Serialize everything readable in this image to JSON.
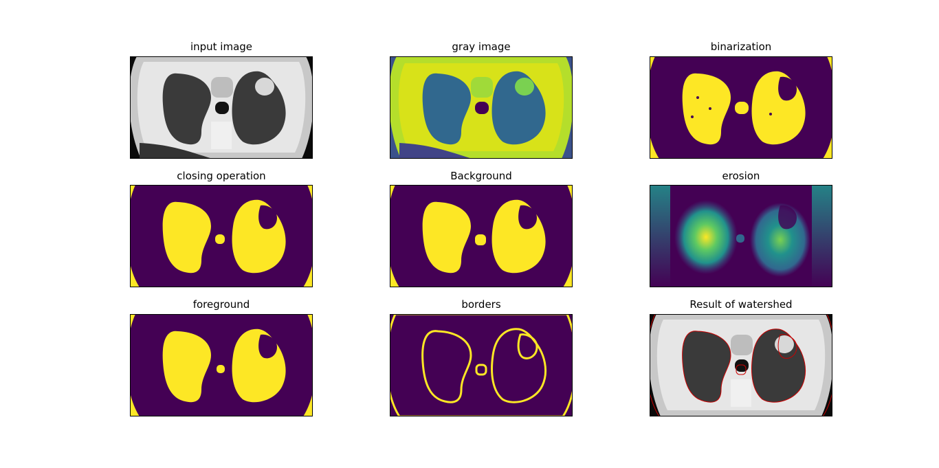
{
  "figure": {
    "titles": {
      "input": "input image",
      "gray": "gray image",
      "binarization": "binarization",
      "closing": "closing operation",
      "background": "Background",
      "erosion": "erosion",
      "foreground": "foreground",
      "borders": "borders",
      "watershed": "Result of watershed"
    }
  },
  "colors": {
    "viridis_dark": "#440154",
    "viridis_yellow": "#fde725",
    "viridis_green": "#b5de2b",
    "viridis_mid": "#21918c",
    "viridis_blue": "#3b528b",
    "watershed_border": "#cc0000"
  },
  "chart_data": [
    {
      "type": "image",
      "title": "input image",
      "colormap": "gray"
    },
    {
      "type": "image",
      "title": "gray image",
      "colormap": "viridis"
    },
    {
      "type": "image",
      "title": "binarization",
      "colormap": "binary-viridis"
    },
    {
      "type": "image",
      "title": "closing operation",
      "colormap": "binary-viridis"
    },
    {
      "type": "image",
      "title": "Background",
      "colormap": "binary-viridis"
    },
    {
      "type": "image",
      "title": "erosion",
      "colormap": "viridis"
    },
    {
      "type": "image",
      "title": "foreground",
      "colormap": "binary-viridis"
    },
    {
      "type": "image",
      "title": "borders",
      "colormap": "binary-viridis"
    },
    {
      "type": "image",
      "title": "Result of watershed",
      "colormap": "gray",
      "overlay": "red watershed borders"
    }
  ]
}
